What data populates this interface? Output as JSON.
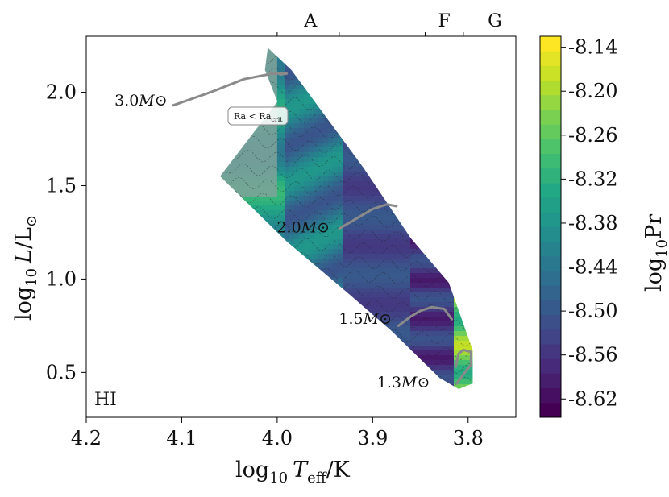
{
  "chart_data": {
    "type": "heatmap",
    "title": "",
    "panel_label": "HI",
    "xlabel": "log10 Teff/K",
    "xlabel_parts": {
      "prefix": "log",
      "sub": "10",
      "var": "T",
      "var_sub": "eff",
      "suffix": "/K"
    },
    "ylabel": "log10 L/L⊙",
    "ylabel_parts": {
      "prefix": "log",
      "sub": "10",
      "var": "L",
      "suffix": "/L",
      "sun": "⊙"
    },
    "xlim": [
      4.2,
      3.75
    ],
    "ylim": [
      0.26,
      2.3
    ],
    "xticks": [
      {
        "value": 4.2,
        "label": "4.2"
      },
      {
        "value": 4.1,
        "label": "4.1"
      },
      {
        "value": 4.0,
        "label": "4.0"
      },
      {
        "value": 3.9,
        "label": "3.9"
      },
      {
        "value": 3.8,
        "label": "3.8"
      }
    ],
    "yticks": [
      {
        "value": 0.5,
        "label": "0.5"
      },
      {
        "value": 1.0,
        "label": "1.0"
      },
      {
        "value": 1.5,
        "label": "1.5"
      },
      {
        "value": 2.0,
        "label": "2.0"
      }
    ],
    "top_axis": {
      "ticks": [
        4.0,
        3.935,
        3.845,
        3.805
      ],
      "spectral_classes": [
        {
          "label": "A",
          "value": 3.965
        },
        {
          "label": "F",
          "value": 3.825
        },
        {
          "label": "G",
          "value": 3.772
        }
      ]
    },
    "colorbar": {
      "label": "log10Pr",
      "label_parts": {
        "prefix": "log",
        "sub": "10",
        "name": "Pr"
      },
      "range": [
        -8.645,
        -8.125
      ],
      "ticks": [
        {
          "value": -8.14,
          "label": "-8.14"
        },
        {
          "value": -8.2,
          "label": "-8.20"
        },
        {
          "value": -8.26,
          "label": "-8.26"
        },
        {
          "value": -8.32,
          "label": "-8.32"
        },
        {
          "value": -8.38,
          "label": "-8.38"
        },
        {
          "value": -8.44,
          "label": "-8.44"
        },
        {
          "value": -8.5,
          "label": "-8.50"
        },
        {
          "value": -8.56,
          "label": "-8.56"
        },
        {
          "value": -8.62,
          "label": "-8.62"
        }
      ],
      "n_levels": 26,
      "colors": [
        "#440154",
        "#482475",
        "#414487",
        "#355f8d",
        "#2a788e",
        "#21918c",
        "#22a884",
        "#44bf70",
        "#7ad151",
        "#bddf26",
        "#fde725"
      ]
    },
    "region": {
      "outline": [
        [
          4.01,
          2.24
        ],
        [
          3.985,
          2.12
        ],
        [
          3.91,
          1.6
        ],
        [
          3.86,
          1.22
        ],
        [
          3.82,
          0.98
        ],
        [
          3.795,
          0.62
        ],
        [
          3.795,
          0.44
        ],
        [
          3.81,
          0.41
        ],
        [
          3.83,
          0.47
        ],
        [
          3.88,
          0.72
        ],
        [
          3.925,
          0.92
        ],
        [
          3.99,
          1.2
        ],
        [
          4.06,
          1.55
        ],
        [
          4.0,
          1.95
        ],
        [
          4.013,
          2.12
        ]
      ],
      "subcritical_band_teff": 4.0,
      "subcritical_color": "#7fa39a"
    },
    "tracks": [
      {
        "mass_label": "3.0",
        "label_text": "3.0",
        "label_pos": [
          4.115,
          1.93
        ],
        "points": [
          [
            4.109,
            1.93
          ],
          [
            4.07,
            2.0
          ],
          [
            4.035,
            2.07
          ],
          [
            4.005,
            2.1
          ],
          [
            3.99,
            2.1
          ],
          [
            3.997,
            2.095
          ]
        ]
      },
      {
        "mass_label": "2.0",
        "label_text": "2.0",
        "label_pos": [
          3.945,
          1.25
        ],
        "points": [
          [
            3.935,
            1.27
          ],
          [
            3.915,
            1.33
          ],
          [
            3.9,
            1.375
          ],
          [
            3.885,
            1.4
          ],
          [
            3.875,
            1.39
          ]
        ]
      },
      {
        "mass_label": "1.5",
        "label_text": "1.5",
        "label_pos": [
          3.88,
          0.76
        ],
        "points": [
          [
            3.873,
            0.75
          ],
          [
            3.86,
            0.8
          ],
          [
            3.85,
            0.83
          ],
          [
            3.838,
            0.85
          ],
          [
            3.825,
            0.84
          ],
          [
            3.817,
            0.785
          ]
        ]
      },
      {
        "mass_label": "1.3",
        "label_text": "1.3",
        "label_pos": [
          3.84,
          0.42
        ],
        "points": [
          [
            3.813,
            0.53
          ],
          [
            3.81,
            0.6
          ],
          [
            3.805,
            0.62
          ],
          [
            3.797,
            0.61
          ],
          [
            3.797,
            0.54
          ],
          [
            3.805,
            0.49
          ],
          [
            3.812,
            0.44
          ]
        ]
      }
    ],
    "tracks_unit": "M⊙",
    "annotation": {
      "text": "Ra < Ra",
      "sub": "crit",
      "pos": [
        4.02,
        1.9
      ]
    }
  }
}
